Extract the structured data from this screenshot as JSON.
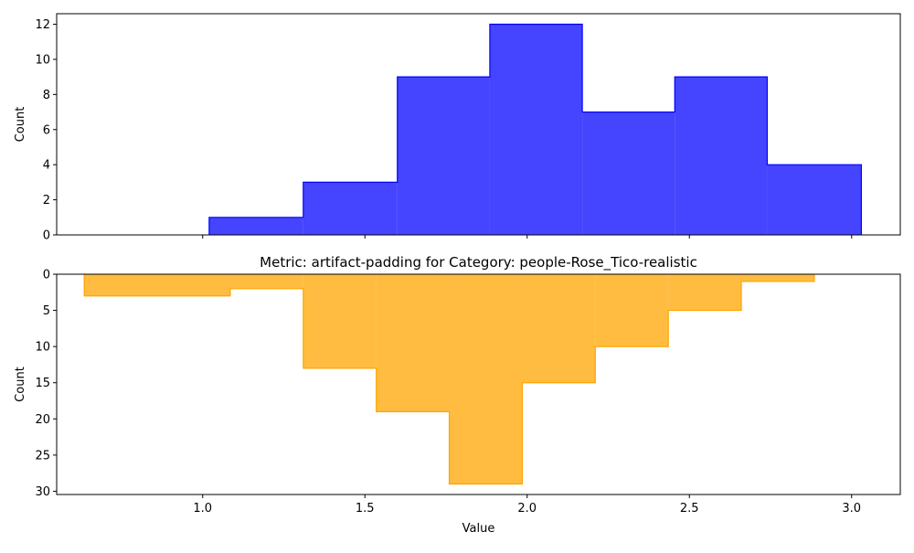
{
  "chart_data": [
    {
      "type": "histogram",
      "title": "",
      "xlabel": "",
      "ylabel": "Count",
      "color": "#0000ff",
      "bins": [
        {
          "x0": 1.02,
          "x1": 1.31,
          "count": 1
        },
        {
          "x0": 1.31,
          "x1": 1.6,
          "count": 3
        },
        {
          "x0": 1.6,
          "x1": 1.885,
          "count": 9
        },
        {
          "x0": 1.885,
          "x1": 2.17,
          "count": 12
        },
        {
          "x0": 2.17,
          "x1": 2.455,
          "count": 7
        },
        {
          "x0": 2.455,
          "x1": 2.74,
          "count": 9
        },
        {
          "x0": 2.74,
          "x1": 3.03,
          "count": 4
        }
      ],
      "xlim": [
        0.55,
        3.15
      ],
      "ylim": [
        0,
        12.6
      ],
      "yticks": [
        "0",
        "2",
        "4",
        "6",
        "8",
        "10",
        "12"
      ],
      "yticks_values": [
        0,
        2,
        4,
        6,
        8,
        10,
        12
      ],
      "grid": false
    },
    {
      "type": "histogram",
      "title": "Metric: artifact-padding for Category: people-Rose_Tico-realistic",
      "xlabel": "Value",
      "ylabel": "Count",
      "color": "#ffa500",
      "y_inverted": true,
      "bins": [
        {
          "x0": 0.635,
          "x1": 1.085,
          "count": 3
        },
        {
          "x0": 1.085,
          "x1": 1.31,
          "count": 2
        },
        {
          "x0": 1.31,
          "x1": 1.535,
          "count": 13
        },
        {
          "x0": 1.535,
          "x1": 1.76,
          "count": 19
        },
        {
          "x0": 1.76,
          "x1": 1.985,
          "count": 29
        },
        {
          "x0": 1.985,
          "x1": 2.21,
          "count": 15
        },
        {
          "x0": 2.21,
          "x1": 2.435,
          "count": 10
        },
        {
          "x0": 2.435,
          "x1": 2.66,
          "count": 5
        },
        {
          "x0": 2.66,
          "x1": 2.885,
          "count": 1
        }
      ],
      "xlim": [
        0.55,
        3.15
      ],
      "ylim": [
        0,
        30.45
      ],
      "xticks": [
        "1.0",
        "1.5",
        "2.0",
        "2.5",
        "3.0"
      ],
      "xticks_values": [
        1.0,
        1.5,
        2.0,
        2.5,
        3.0
      ],
      "yticks": [
        "0",
        "5",
        "10",
        "15",
        "20",
        "25",
        "30"
      ],
      "yticks_values": [
        0,
        5,
        10,
        15,
        20,
        25,
        30
      ],
      "grid": false
    }
  ]
}
